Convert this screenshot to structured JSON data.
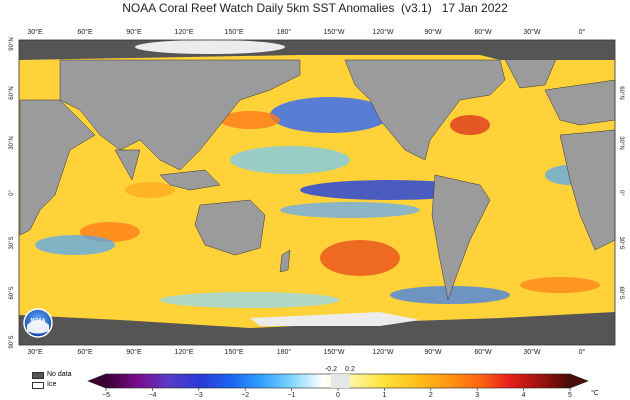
{
  "title": "NOAA Coral Reef Watch Daily 5km SST Anomalies  (v3.1)   17 Jan 2022",
  "map": {
    "lon_labels_top": [
      "30°E",
      "60°E",
      "90°E",
      "120°E",
      "150°E",
      "180°",
      "150°W",
      "120°W",
      "90°W",
      "60°W",
      "30°W",
      "0°"
    ],
    "lon_labels_bottom": [
      "30°E",
      "60°E",
      "90°E",
      "120°E",
      "150°E",
      "180°",
      "150°W",
      "120°W",
      "90°W",
      "60°W",
      "30°W",
      "0°"
    ],
    "lat_labels_left": [
      "90°N",
      "60°N",
      "30°N",
      "0°",
      "30°S",
      "60°S",
      "90°S"
    ],
    "lat_labels_right": [
      "60°N",
      "30°N",
      "0°",
      "30°S",
      "60°S"
    ],
    "colors": {
      "land": "#9b9b9b",
      "nodata": "#555555",
      "ice": "#ececec",
      "frame": "#333333"
    }
  },
  "legend": {
    "nodata_label": "No data",
    "ice_label": "Ice"
  },
  "colorbar": {
    "unit": "°C",
    "min": -5,
    "max": 5,
    "tick_labels": [
      "−5",
      "−4",
      "−3",
      "−2",
      "−1",
      "0",
      "1",
      "2",
      "3",
      "4",
      "5"
    ],
    "small_labels": [
      "-0.2",
      "0.2"
    ],
    "colors": [
      "#3a0033",
      "#7a0a8a",
      "#5b3bc6",
      "#2a39d6",
      "#1b62f0",
      "#2f9fff",
      "#7fd6ff",
      "#ffffff",
      "#fff59a",
      "#ffe13a",
      "#ffc21a",
      "#ff9a12",
      "#ff6a12",
      "#e8231a",
      "#a3120f",
      "#4a0a08"
    ]
  },
  "logo": {
    "text": "NOAA"
  }
}
